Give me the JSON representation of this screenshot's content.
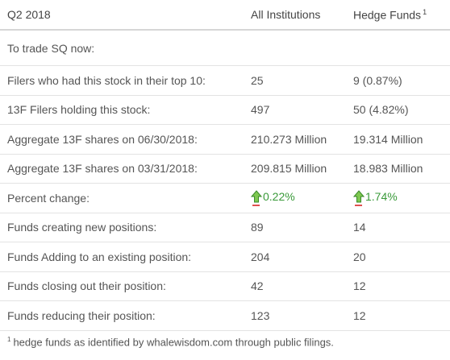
{
  "header": {
    "period": "Q2 2018",
    "col_all": "All Institutions",
    "col_hedge": "Hedge Funds",
    "footnote_marker": "1"
  },
  "subheader": "To trade SQ now:",
  "rows": [
    {
      "label": "Filers who had this stock in their top 10:",
      "all": "25",
      "hedge": "9 (0.87%)"
    },
    {
      "label": "13F Filers holding this stock:",
      "all": "497",
      "hedge": "50 (4.82%)"
    },
    {
      "label": "Aggregate 13F shares on 06/30/2018:",
      "all": "210.273 Million",
      "hedge": "19.314 Million"
    },
    {
      "label": "Aggregate 13F shares on 03/31/2018:",
      "all": "209.815 Million",
      "hedge": "18.983 Million"
    },
    {
      "label": "Percent change:",
      "all": "0.22%",
      "hedge": "1.74%",
      "all_icon": "up-arrow-icon",
      "hedge_icon": "up-arrow-icon"
    },
    {
      "label": "Funds creating new positions:",
      "all": "89",
      "hedge": "14"
    },
    {
      "label": "Funds Adding to an existing position:",
      "all": "204",
      "hedge": "20"
    },
    {
      "label": "Funds closing out their position:",
      "all": "42",
      "hedge": "12"
    },
    {
      "label": "Funds reducing their position:",
      "all": "123",
      "hedge": "12"
    }
  ],
  "footnote": {
    "marker": "1",
    "text": "hedge funds as identified by whalewisdom.com through public filings."
  },
  "colors": {
    "positive": "#3a9a3a",
    "arrow_fill": "#7ec850",
    "underline": "#e05050"
  }
}
